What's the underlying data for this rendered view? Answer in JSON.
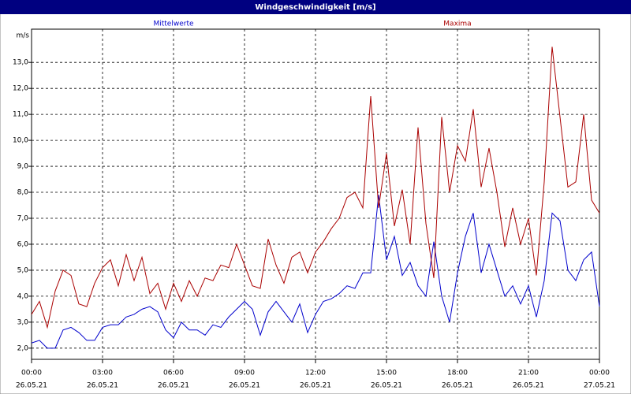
{
  "chart_data": {
    "type": "line",
    "title": "Windgeschwindigkeit [m/s]",
    "ylabel": "m/s",
    "x": [
      0,
      20,
      40,
      60,
      80,
      100,
      120,
      140,
      160,
      180,
      200,
      220,
      240,
      260,
      280,
      300,
      320,
      340,
      360,
      380,
      400,
      420,
      440,
      460,
      480,
      500,
      520,
      540,
      560,
      580,
      600,
      620,
      640,
      660,
      680,
      700,
      720,
      740,
      760,
      780,
      800,
      820,
      840,
      860,
      880,
      900,
      920,
      940,
      960,
      980,
      1000,
      1020,
      1040,
      1060,
      1080,
      1100,
      1120,
      1140,
      1160,
      1180,
      1200,
      1220,
      1240,
      1260,
      1280,
      1300,
      1320,
      1340,
      1360,
      1380,
      1400,
      1420,
      1440
    ],
    "xlim": [
      0,
      1440
    ],
    "xticks": [
      {
        "value": 0,
        "label": [
          "00:00",
          "26.05.21"
        ]
      },
      {
        "value": 180,
        "label": [
          "03:00",
          "26.05.21"
        ]
      },
      {
        "value": 360,
        "label": [
          "06:00",
          "26.05.21"
        ]
      },
      {
        "value": 540,
        "label": [
          "09:00",
          "26.05.21"
        ]
      },
      {
        "value": 720,
        "label": [
          "12:00",
          "26.05.21"
        ]
      },
      {
        "value": 900,
        "label": [
          "15:00",
          "26.05.21"
        ]
      },
      {
        "value": 1080,
        "label": [
          "18:00",
          "26.05.21"
        ]
      },
      {
        "value": 1260,
        "label": [
          "21:00",
          "26.05.21"
        ]
      },
      {
        "value": 1440,
        "label": [
          "00:00",
          "27.05.21"
        ]
      }
    ],
    "ylim": [
      1.57,
      14.28
    ],
    "yticks": [
      {
        "value": 2,
        "label": "2,0"
      },
      {
        "value": 3,
        "label": "3,0"
      },
      {
        "value": 4,
        "label": "4,0"
      },
      {
        "value": 5,
        "label": "5,0"
      },
      {
        "value": 6,
        "label": "6,0"
      },
      {
        "value": 7,
        "label": "7,0"
      },
      {
        "value": 8,
        "label": "8,0"
      },
      {
        "value": 9,
        "label": "9,0"
      },
      {
        "value": 10,
        "label": "10,0"
      },
      {
        "value": 11,
        "label": "11,0"
      },
      {
        "value": 12,
        "label": "12,0"
      },
      {
        "value": 13,
        "label": "13,0"
      }
    ],
    "grid": true,
    "series": [
      {
        "name": "Mittelwerte",
        "color": "#0000cc",
        "values": [
          2.2,
          2.3,
          2.0,
          2.0,
          2.7,
          2.8,
          2.6,
          2.3,
          2.3,
          2.8,
          2.9,
          2.9,
          3.2,
          3.3,
          3.5,
          3.6,
          3.4,
          2.7,
          2.4,
          3.0,
          2.7,
          2.7,
          2.5,
          2.9,
          2.8,
          3.2,
          3.5,
          3.8,
          3.5,
          2.5,
          3.4,
          3.8,
          3.4,
          3.0,
          3.7,
          2.6,
          3.3,
          3.8,
          3.9,
          4.1,
          4.4,
          4.3,
          4.9,
          4.9,
          7.9,
          5.4,
          6.3,
          4.8,
          5.3,
          4.4,
          4.0,
          6.1,
          4.0,
          3.0,
          4.9,
          6.3,
          7.2,
          4.9,
          6.0,
          5.0,
          4.0,
          4.4,
          3.7,
          4.4,
          3.2,
          4.6,
          7.2,
          6.9,
          5.0,
          4.6,
          5.4,
          5.7,
          3.6
        ]
      },
      {
        "name": "Maxima",
        "color": "#aa0000",
        "values": [
          3.3,
          3.8,
          2.8,
          4.2,
          5.0,
          4.8,
          3.7,
          3.6,
          4.5,
          5.1,
          5.4,
          4.4,
          5.6,
          4.6,
          5.5,
          4.1,
          4.5,
          3.5,
          4.5,
          3.8,
          4.6,
          4.0,
          4.7,
          4.6,
          5.2,
          5.1,
          6.0,
          5.2,
          4.4,
          4.3,
          6.2,
          5.2,
          4.5,
          5.5,
          5.7,
          4.9,
          5.7,
          6.1,
          6.6,
          7.0,
          7.8,
          8.0,
          7.4,
          11.7,
          7.4,
          9.5,
          6.7,
          8.1,
          6.0,
          10.5,
          6.8,
          4.7,
          10.9,
          8.0,
          9.8,
          9.2,
          11.2,
          8.2,
          9.7,
          8.0,
          5.9,
          7.4,
          6.0,
          7.0,
          4.8,
          8.4,
          13.6,
          10.9,
          8.2,
          8.4,
          11.0,
          7.7,
          7.2
        ]
      }
    ]
  }
}
